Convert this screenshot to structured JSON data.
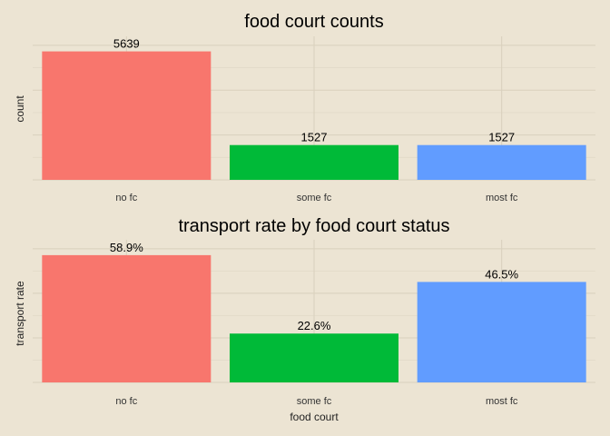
{
  "colors": {
    "background": "#ece4d3",
    "no_fc": "#f8766d",
    "some_fc": "#00ba38",
    "most_fc": "#619cff"
  },
  "chart_data": [
    {
      "type": "bar",
      "title": "food court counts",
      "xlabel": "",
      "ylabel": "count",
      "categories": [
        "no fc",
        "some fc",
        "most fc"
      ],
      "values": [
        5639,
        1527,
        1527
      ],
      "value_labels": [
        "5639",
        "1527",
        "1527"
      ],
      "ylim": [
        0,
        6300
      ],
      "grid": true,
      "show_y_ticks": false
    },
    {
      "type": "bar",
      "title": "transport rate by food court status",
      "xlabel": "food court",
      "ylabel": "transport rate",
      "categories": [
        "no fc",
        "some fc",
        "most fc"
      ],
      "values": [
        58.9,
        22.6,
        46.5
      ],
      "value_labels": [
        "58.9%",
        "22.6%",
        "46.5%"
      ],
      "ylim": [
        0,
        66
      ],
      "grid": true,
      "show_y_ticks": false
    }
  ]
}
